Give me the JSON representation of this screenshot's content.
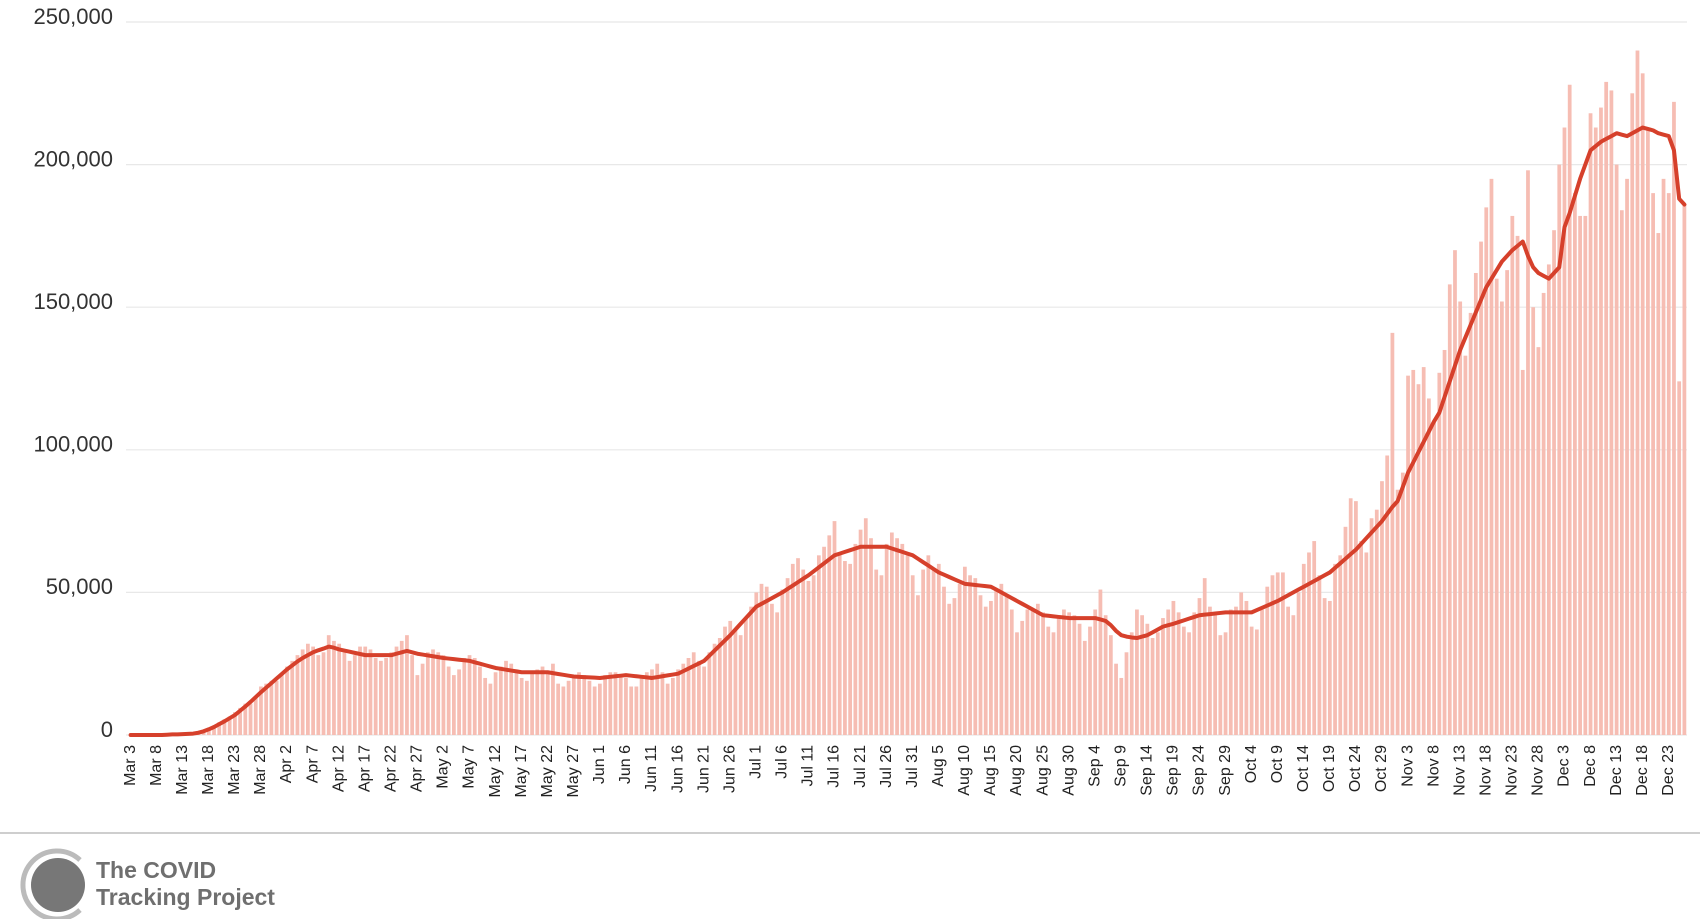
{
  "chart_data": {
    "type": "combo",
    "ylim": [
      0,
      250000
    ],
    "yticks": [
      0,
      {
        "value": 50000,
        "label": "50,000"
      },
      {
        "value": 100000,
        "label": "100,000"
      },
      {
        "value": 150000,
        "label": "150,000"
      },
      {
        "value": 200000,
        "label": "200,000"
      },
      {
        "value": 250000,
        "label": "250,000"
      }
    ],
    "grid": true,
    "categories": [
      "Mar 3",
      null,
      null,
      null,
      null,
      "Mar 8",
      null,
      null,
      null,
      null,
      "Mar 13",
      null,
      null,
      null,
      null,
      "Mar 18",
      null,
      null,
      null,
      null,
      "Mar 23",
      null,
      null,
      null,
      null,
      "Mar 28",
      null,
      null,
      null,
      null,
      "Apr 2",
      null,
      null,
      null,
      null,
      "Apr 7",
      null,
      null,
      null,
      null,
      "Apr 12",
      null,
      null,
      null,
      null,
      "Apr 17",
      null,
      null,
      null,
      null,
      "Apr 22",
      null,
      null,
      null,
      null,
      "Apr 27",
      null,
      null,
      null,
      null,
      "May 2",
      null,
      null,
      null,
      null,
      "May 7",
      null,
      null,
      null,
      null,
      "May 12",
      null,
      null,
      null,
      null,
      "May 17",
      null,
      null,
      null,
      null,
      "May 22",
      null,
      null,
      null,
      null,
      "May 27",
      null,
      null,
      null,
      null,
      "Jun 1",
      null,
      null,
      null,
      null,
      "Jun 6",
      null,
      null,
      null,
      null,
      "Jun 11",
      null,
      null,
      null,
      null,
      "Jun 16",
      null,
      null,
      null,
      null,
      "Jun 21",
      null,
      null,
      null,
      null,
      "Jun 26",
      null,
      null,
      null,
      null,
      "Jul 1",
      null,
      null,
      null,
      null,
      "Jul 6",
      null,
      null,
      null,
      null,
      "Jul 11",
      null,
      null,
      null,
      null,
      "Jul 16",
      null,
      null,
      null,
      null,
      "Jul 21",
      null,
      null,
      null,
      null,
      "Jul 26",
      null,
      null,
      null,
      null,
      "Jul 31",
      null,
      null,
      null,
      null,
      "Aug 5",
      null,
      null,
      null,
      null,
      "Aug 10",
      null,
      null,
      null,
      null,
      "Aug 15",
      null,
      null,
      null,
      null,
      "Aug 20",
      null,
      null,
      null,
      null,
      "Aug 25",
      null,
      null,
      null,
      null,
      "Aug 30",
      null,
      null,
      null,
      null,
      "Sep 4",
      null,
      null,
      null,
      null,
      "Sep 9",
      null,
      null,
      null,
      null,
      "Sep 14",
      null,
      null,
      null,
      null,
      "Sep 19",
      null,
      null,
      null,
      null,
      "Sep 24",
      null,
      null,
      null,
      null,
      "Sep 29",
      null,
      null,
      null,
      null,
      "Oct 4",
      null,
      null,
      null,
      null,
      "Oct 9",
      null,
      null,
      null,
      null,
      "Oct 14",
      null,
      null,
      null,
      null,
      "Oct 19",
      null,
      null,
      null,
      null,
      "Oct 24",
      null,
      null,
      null,
      null,
      "Oct 29",
      null,
      null,
      null,
      null,
      "Nov 3",
      null,
      null,
      null,
      null,
      "Nov 8",
      null,
      null,
      null,
      null,
      "Nov 13",
      null,
      null,
      null,
      null,
      "Nov 18",
      null,
      null,
      null,
      null,
      "Nov 23",
      null,
      null,
      null,
      null,
      "Nov 28",
      null,
      null,
      null,
      null,
      "Dec 3",
      null,
      null,
      null,
      null,
      "Dec 8",
      null,
      null,
      null,
      null,
      "Dec 13",
      null,
      null,
      null,
      null,
      "Dec 18",
      null,
      null,
      null,
      null,
      "Dec 23",
      null,
      null,
      null
    ],
    "series": [
      {
        "type": "bar",
        "color": "#f6bdb3",
        "values": [
          0,
          0,
          0,
          0,
          0,
          0,
          100,
          200,
          300,
          300,
          400,
          500,
          700,
          1000,
          1600,
          2500,
          3000,
          4500,
          5500,
          6500,
          8000,
          9500,
          11000,
          11000,
          13000,
          17000,
          18000,
          19000,
          19000,
          21000,
          24000,
          26000,
          28000,
          30000,
          32000,
          31000,
          28000,
          29000,
          35000,
          33000,
          32000,
          29000,
          26000,
          28000,
          31000,
          31000,
          30000,
          27000,
          26000,
          27000,
          29000,
          31000,
          33000,
          35000,
          28000,
          21000,
          25000,
          29000,
          30000,
          29000,
          28000,
          24000,
          21000,
          23000,
          27000,
          28000,
          27000,
          24000,
          20000,
          18000,
          22000,
          24000,
          26000,
          25000,
          23000,
          20000,
          19000,
          22000,
          23000,
          24000,
          22000,
          25000,
          18000,
          17000,
          19000,
          21000,
          22000,
          21000,
          19000,
          17000,
          18000,
          21000,
          22000,
          22000,
          21000,
          20000,
          17000,
          17000,
          21000,
          22000,
          23000,
          25000,
          22000,
          18000,
          20000,
          23000,
          25000,
          27000,
          29000,
          26000,
          24000,
          29000,
          32000,
          34000,
          38000,
          40000,
          37000,
          35000,
          41000,
          45000,
          50000,
          53000,
          52000,
          46000,
          43000,
          51000,
          55000,
          60000,
          62000,
          58000,
          54000,
          56000,
          63000,
          66000,
          70000,
          75000,
          64000,
          61000,
          60000,
          67000,
          72000,
          76000,
          69000,
          58000,
          56000,
          67000,
          71000,
          69000,
          67000,
          63000,
          56000,
          49000,
          58000,
          63000,
          58000,
          60000,
          52000,
          46000,
          48000,
          53000,
          59000,
          56000,
          55000,
          49000,
          45000,
          47000,
          51000,
          53000,
          49000,
          44000,
          36000,
          40000,
          44000,
          44000,
          46000,
          43000,
          38000,
          36000,
          42000,
          44000,
          43000,
          42000,
          39000,
          33000,
          38000,
          44000,
          51000,
          42000,
          35000,
          25000,
          20000,
          29000,
          36000,
          44000,
          42000,
          39000,
          34000,
          36000,
          41000,
          44000,
          47000,
          43000,
          38000,
          36000,
          43000,
          48000,
          55000,
          45000,
          43000,
          35000,
          36000,
          44000,
          45000,
          50000,
          47000,
          38000,
          37000,
          44000,
          52000,
          56000,
          57000,
          57000,
          45000,
          42000,
          50000,
          60000,
          64000,
          68000,
          56000,
          48000,
          47000,
          60000,
          63000,
          73000,
          83000,
          82000,
          68000,
          64000,
          76000,
          79000,
          89000,
          98000,
          141000,
          86000,
          92000,
          126000,
          128000,
          123000,
          129000,
          118000,
          110000,
          127000,
          135000,
          158000,
          170000,
          152000,
          133000,
          148000,
          162000,
          173000,
          185000,
          195000,
          160000,
          152000,
          163000,
          182000,
          175000,
          128000,
          198000,
          150000,
          136000,
          155000,
          165000,
          177000,
          200000,
          213000,
          228000,
          190000,
          182000,
          182000,
          218000,
          213000,
          220000,
          229000,
          226000,
          200000,
          184000,
          195000,
          225000,
          240000,
          232000,
          213000,
          190000,
          176000,
          195000,
          190000,
          222000,
          124000,
          186000
        ]
      },
      {
        "type": "line",
        "color": "#d6402b",
        "values": [
          0,
          0,
          0,
          0,
          0,
          0,
          0,
          100,
          200,
          200,
          300,
          400,
          500,
          800,
          1300,
          2000,
          2800,
          3800,
          4800,
          5900,
          7000,
          8500,
          10000,
          11600,
          13300,
          15000,
          16600,
          18200,
          19800,
          21400,
          23000,
          24400,
          25800,
          27000,
          28000,
          29000,
          29700,
          30300,
          31000,
          30600,
          30000,
          29600,
          29200,
          28800,
          28400,
          28000,
          28000,
          28000,
          28000,
          28000,
          28000,
          28500,
          29000,
          29500,
          29000,
          28500,
          28200,
          27900,
          27600,
          27300,
          27000,
          26800,
          26600,
          26400,
          26200,
          26000,
          25500,
          25000,
          24500,
          24000,
          23500,
          23200,
          22900,
          22600,
          22300,
          22000,
          22000,
          22000,
          22000,
          22000,
          22000,
          21700,
          21400,
          21100,
          20800,
          20500,
          20400,
          20300,
          20200,
          20100,
          20000,
          20200,
          20400,
          20600,
          20800,
          21000,
          20800,
          20600,
          20400,
          20200,
          20000,
          20300,
          20600,
          20900,
          21200,
          21500,
          22400,
          23300,
          24200,
          25100,
          26000,
          27800,
          29600,
          31400,
          33200,
          35000,
          37000,
          39000,
          41000,
          43000,
          45000,
          46000,
          47000,
          48000,
          49000,
          50000,
          51200,
          52400,
          53600,
          54800,
          56000,
          57400,
          58800,
          60200,
          61600,
          63000,
          63600,
          64200,
          64800,
          65400,
          66000,
          66000,
          66000,
          66000,
          66000,
          66000,
          65400,
          64800,
          64200,
          63600,
          63000,
          61800,
          60600,
          59400,
          58200,
          57000,
          56200,
          55400,
          54600,
          53800,
          53000,
          52800,
          52600,
          52400,
          52200,
          52000,
          51000,
          50000,
          49000,
          48000,
          47000,
          46000,
          45000,
          44000,
          43000,
          42000,
          41800,
          41600,
          41400,
          41200,
          41000,
          41000,
          41000,
          41000,
          41000,
          41000,
          40500,
          40000,
          38500,
          36500,
          35000,
          34500,
          34200,
          34000,
          34500,
          35000,
          36000,
          37000,
          38000,
          38500,
          39000,
          39600,
          40200,
          40800,
          41400,
          42000,
          42200,
          42400,
          42600,
          42800,
          43000,
          43000,
          43000,
          43000,
          43000,
          43000,
          43800,
          44600,
          45400,
          46200,
          47000,
          48000,
          49000,
          50000,
          51000,
          52000,
          53000,
          54000,
          55000,
          56000,
          57000,
          58600,
          60200,
          61800,
          63400,
          65000,
          67000,
          69000,
          71000,
          73000,
          75000,
          77500,
          80000,
          82000,
          87000,
          92000,
          95600,
          99200,
          102800,
          106400,
          110000,
          113000,
          118500,
          124000,
          129500,
          135000,
          139400,
          143800,
          148200,
          152600,
          157000,
          160000,
          163000,
          166000,
          168000,
          170000,
          171500,
          173000,
          168000,
          164000,
          162000,
          161000,
          160000,
          162000,
          164000,
          178000,
          183000,
          189000,
          195000,
          200000,
          205000,
          206500,
          208000,
          209000,
          210000,
          211000,
          210500,
          210000,
          211000,
          212000,
          213000,
          212500,
          212000,
          211000,
          210500,
          210000,
          205000,
          188000,
          186000
        ]
      }
    ]
  },
  "footer": {
    "logo_text": [
      "The COVID",
      "Tracking Project"
    ]
  }
}
